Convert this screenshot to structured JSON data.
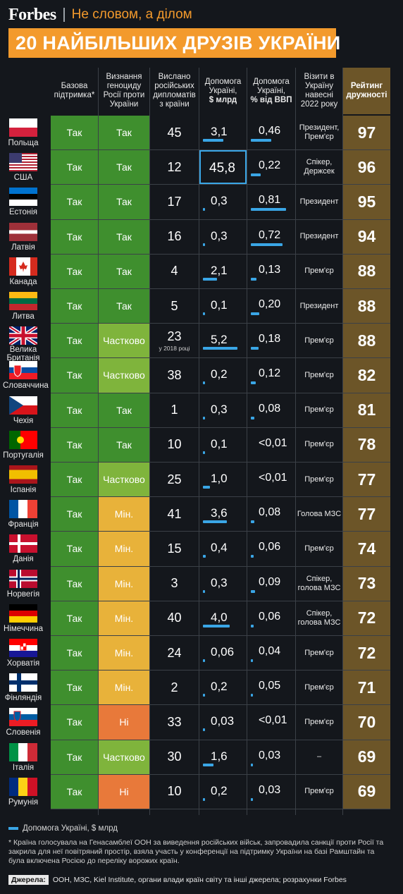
{
  "brand": "Forbes",
  "slogan": "Не словом, а ділом",
  "title": "20 НАЙБІЛЬШИХ ДРУЗІВ УКРАЇНИ",
  "headers": {
    "support": "Базова підтримка*",
    "genocide": "Визнання геноциду Росії проти України",
    "diplomats": "Вислано російських дипломатів з країни",
    "aid_top": "Допомога Україні,",
    "aid_unit": "$ млрд",
    "gdp_top": "Допомога Україні,",
    "gdp_unit": "% від ВВП",
    "visits": "Візити в Україну навесні 2022 року",
    "rating": "Рейтинг дружності"
  },
  "colors": {
    "so": "#3f8f2e",
    "partial": "#7fb43c",
    "min": "#e8b23a",
    "no": "#e8793a",
    "bar": "#3aa6e6",
    "rating_bg": "#6c5528",
    "title_bg": "#f39a2c"
  },
  "rows": [
    {
      "country": "Польща",
      "flag": "poland-flag",
      "support": "Так",
      "genocide": "Так",
      "genocide_level": "so",
      "diplomats": "45",
      "diplomats_note": "",
      "aid": "3,1",
      "aid_num": 3.1,
      "gdp": "0,46",
      "gdp_num": 0.46,
      "visits": "Президент, Прем'єр",
      "rating": "97"
    },
    {
      "country": "США",
      "flag": "usa-flag",
      "support": "Так",
      "genocide": "Так",
      "genocide_level": "so",
      "diplomats": "12",
      "diplomats_note": "",
      "aid": "45,8",
      "aid_num": 45.8,
      "gdp": "0,22",
      "gdp_num": 0.22,
      "visits": "Спікер, Держсек",
      "rating": "96"
    },
    {
      "country": "Естонія",
      "flag": "estonia-flag",
      "support": "Так",
      "genocide": "Так",
      "genocide_level": "so",
      "diplomats": "17",
      "diplomats_note": "",
      "aid": "0,3",
      "aid_num": 0.3,
      "gdp": "0,81",
      "gdp_num": 0.81,
      "visits": "Президент",
      "rating": "95"
    },
    {
      "country": "Латвія",
      "flag": "latvia-flag",
      "support": "Так",
      "genocide": "Так",
      "genocide_level": "so",
      "diplomats": "16",
      "diplomats_note": "",
      "aid": "0,3",
      "aid_num": 0.3,
      "gdp": "0,72",
      "gdp_num": 0.72,
      "visits": "Президент",
      "rating": "94"
    },
    {
      "country": "Канада",
      "flag": "canada-flag",
      "support": "Так",
      "genocide": "Так",
      "genocide_level": "so",
      "diplomats": "4",
      "diplomats_note": "",
      "aid": "2,1",
      "aid_num": 2.1,
      "gdp": "0,13",
      "gdp_num": 0.13,
      "visits": "Прем'єр",
      "rating": "88"
    },
    {
      "country": "Литва",
      "flag": "lithuania-flag",
      "support": "Так",
      "genocide": "Так",
      "genocide_level": "so",
      "diplomats": "5",
      "diplomats_note": "",
      "aid": "0,1",
      "aid_num": 0.1,
      "gdp": "0,20",
      "gdp_num": 0.2,
      "visits": "Президент",
      "rating": "88"
    },
    {
      "country": "Велика Британія",
      "flag": "uk-flag",
      "support": "Так",
      "genocide": "Частково",
      "genocide_level": "partial",
      "diplomats": "23",
      "diplomats_note": "у 2018 році",
      "aid": "5,2",
      "aid_num": 5.2,
      "gdp": "0,18",
      "gdp_num": 0.18,
      "visits": "Прем'єр",
      "rating": "88"
    },
    {
      "country": "Словаччина",
      "flag": "slovakia-flag",
      "support": "Так",
      "genocide": "Частково",
      "genocide_level": "partial",
      "diplomats": "38",
      "diplomats_note": "",
      "aid": "0,2",
      "aid_num": 0.2,
      "gdp": "0,12",
      "gdp_num": 0.12,
      "visits": "Прем'єр",
      "rating": "82"
    },
    {
      "country": "Чехія",
      "flag": "czech-flag",
      "support": "Так",
      "genocide": "Так",
      "genocide_level": "so",
      "diplomats": "1",
      "diplomats_note": "",
      "aid": "0,3",
      "aid_num": 0.3,
      "gdp": "0,08",
      "gdp_num": 0.08,
      "visits": "Прем'єр",
      "rating": "81"
    },
    {
      "country": "Португалія",
      "flag": "portugal-flag",
      "support": "Так",
      "genocide": "Так",
      "genocide_level": "so",
      "diplomats": "10",
      "diplomats_note": "",
      "aid": "0,1",
      "aid_num": 0.1,
      "gdp": "<0,01",
      "gdp_num": 0,
      "visits": "Прем'єр",
      "rating": "78"
    },
    {
      "country": "Іспанія",
      "flag": "spain-flag",
      "support": "Так",
      "genocide": "Частково",
      "genocide_level": "partial",
      "diplomats": "25",
      "diplomats_note": "",
      "aid": "1,0",
      "aid_num": 1.0,
      "gdp": "<0,01",
      "gdp_num": 0,
      "visits": "Прем'єр",
      "rating": "77"
    },
    {
      "country": "Франція",
      "flag": "france-flag",
      "support": "Так",
      "genocide": "Мін.",
      "genocide_level": "min",
      "diplomats": "41",
      "diplomats_note": "",
      "aid": "3,6",
      "aid_num": 3.6,
      "gdp": "0,08",
      "gdp_num": 0.08,
      "visits": "Голова МЗС",
      "rating": "77"
    },
    {
      "country": "Данія",
      "flag": "denmark-flag",
      "support": "Так",
      "genocide": "Мін.",
      "genocide_level": "min",
      "diplomats": "15",
      "diplomats_note": "",
      "aid": "0,4",
      "aid_num": 0.4,
      "gdp": "0,06",
      "gdp_num": 0.06,
      "visits": "Прем'єр",
      "rating": "74"
    },
    {
      "country": "Норвегія",
      "flag": "norway-flag",
      "support": "Так",
      "genocide": "Мін.",
      "genocide_level": "min",
      "diplomats": "3",
      "diplomats_note": "",
      "aid": "0,3",
      "aid_num": 0.3,
      "gdp": "0,09",
      "gdp_num": 0.09,
      "visits": "Спікер, голова МЗС",
      "rating": "73"
    },
    {
      "country": "Німеччина",
      "flag": "germany-flag",
      "support": "Так",
      "genocide": "Мін.",
      "genocide_level": "min",
      "diplomats": "40",
      "diplomats_note": "",
      "aid": "4,0",
      "aid_num": 4.0,
      "gdp": "0,06",
      "gdp_num": 0.06,
      "visits": "Спікер, голова МЗС",
      "rating": "72"
    },
    {
      "country": "Хорватія",
      "flag": "croatia-flag",
      "support": "Так",
      "genocide": "Мін.",
      "genocide_level": "min",
      "diplomats": "24",
      "diplomats_note": "",
      "aid": "0,06",
      "aid_num": 0.06,
      "gdp": "0,04",
      "gdp_num": 0.04,
      "visits": "Прем'єр",
      "rating": "72"
    },
    {
      "country": "Фінляндія",
      "flag": "finland-flag",
      "support": "Так",
      "genocide": "Мін.",
      "genocide_level": "min",
      "diplomats": "2",
      "diplomats_note": "",
      "aid": "0,2",
      "aid_num": 0.2,
      "gdp": "0,05",
      "gdp_num": 0.05,
      "visits": "Прем'єр",
      "rating": "71"
    },
    {
      "country": "Словенія",
      "flag": "slovenia-flag",
      "support": "Так",
      "genocide": "Ні",
      "genocide_level": "no",
      "diplomats": "33",
      "diplomats_note": "",
      "aid": "0,03",
      "aid_num": 0.03,
      "gdp": "<0,01",
      "gdp_num": 0,
      "visits": "Прем'єр",
      "rating": "70"
    },
    {
      "country": "Італія",
      "flag": "italy-flag",
      "support": "Так",
      "genocide": "Частково",
      "genocide_level": "partial",
      "diplomats": "30",
      "diplomats_note": "",
      "aid": "1,6",
      "aid_num": 1.6,
      "gdp": "0,03",
      "gdp_num": 0.03,
      "visits": "–",
      "rating": "69"
    },
    {
      "country": "Румунія",
      "flag": "romania-flag",
      "support": "Так",
      "genocide": "Ні",
      "genocide_level": "no",
      "diplomats": "10",
      "diplomats_note": "",
      "aid": "0,2",
      "aid_num": 0.2,
      "gdp": "0,03",
      "gdp_num": 0.03,
      "visits": "Прем'єр",
      "rating": "69"
    }
  ],
  "legend": "Допомога Україні, $ млрд",
  "legend_unit": "$ млрд",
  "note": "* Країна голосувала на Генасамблеї ООН за виведення російських військ, запровадила санкції проти Росії та закрила для неї повітряний простір, взяла участь у конференції на підтримку України на базі Рамштайн та була включена Росією до переліку ворожих країн.",
  "sources_label": "Джерела:",
  "sources": "ООН, МЗС, Kiel Institute, органи влади країн світу та інші джерела; розрахунки Forbes"
}
